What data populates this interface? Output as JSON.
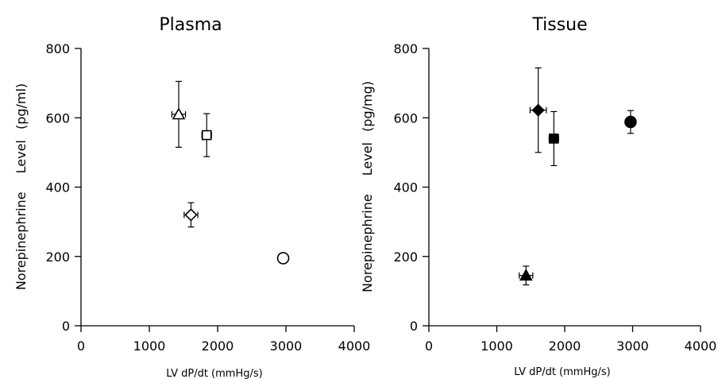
{
  "chart_data": [
    {
      "type": "scatter",
      "title": "Plasma",
      "xlabel": "LV dP/dt (mmHg/s)",
      "ylabel_parts": [
        "Norepinephrine",
        "Level",
        "(pg/ml)"
      ],
      "xlim": [
        0,
        4000
      ],
      "ylim": [
        0,
        800
      ],
      "xticks": [
        0,
        1000,
        2000,
        3000,
        4000
      ],
      "yticks": [
        0,
        200,
        400,
        600,
        800
      ],
      "grid": false,
      "points": [
        {
          "marker": "triangle",
          "filled": false,
          "x": 1430,
          "y": 610,
          "xerr": 100,
          "yerr": 95
        },
        {
          "marker": "square",
          "filled": false,
          "x": 1840,
          "y": 550,
          "xerr": 70,
          "yerr": 62
        },
        {
          "marker": "diamond",
          "filled": false,
          "x": 1610,
          "y": 320,
          "xerr": 100,
          "yerr": 35
        },
        {
          "marker": "circle",
          "filled": false,
          "x": 2960,
          "y": 195,
          "xerr": 40,
          "yerr": 10
        }
      ]
    },
    {
      "type": "scatter",
      "title": "Tissue",
      "xlabel": "LV dP/dt (mmHg/s)",
      "ylabel_parts": [
        "Norepinephrine",
        "Level",
        "(pg/mg)"
      ],
      "xlim": [
        0,
        4000
      ],
      "ylim": [
        0,
        800
      ],
      "xticks": [
        0,
        1000,
        2000,
        3000,
        4000
      ],
      "yticks": [
        0,
        200,
        400,
        600,
        800
      ],
      "grid": false,
      "points": [
        {
          "marker": "diamond",
          "filled": true,
          "x": 1610,
          "y": 622,
          "xerr": 120,
          "yerr": 122
        },
        {
          "marker": "square",
          "filled": true,
          "x": 1840,
          "y": 540,
          "xerr": 70,
          "yerr": 78
        },
        {
          "marker": "circle",
          "filled": true,
          "x": 2970,
          "y": 588,
          "xerr": 50,
          "yerr": 33
        },
        {
          "marker": "triangle",
          "filled": true,
          "x": 1430,
          "y": 145,
          "xerr": 100,
          "yerr": 27
        }
      ]
    }
  ]
}
